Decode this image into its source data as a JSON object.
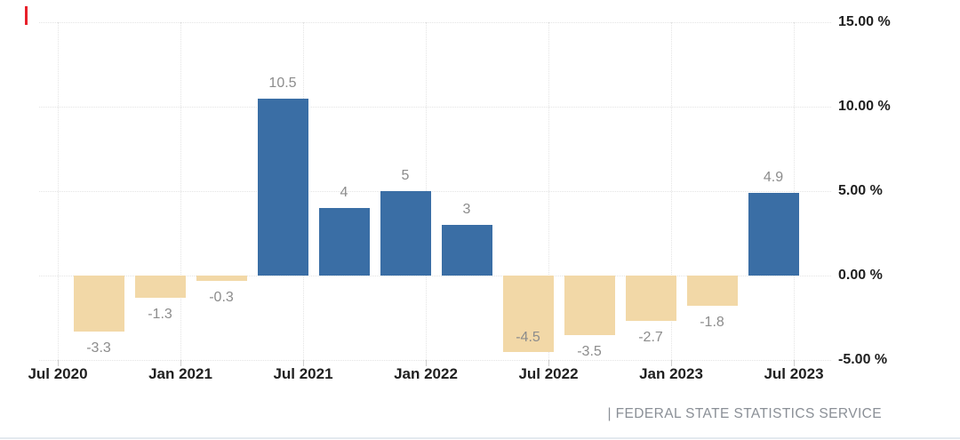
{
  "chart_data": {
    "type": "bar",
    "title": "",
    "xlabel": "",
    "ylabel": "",
    "unit": "%",
    "ylim": [
      -5,
      15
    ],
    "grid": "dotted",
    "legend_position": "none",
    "y_ticks": [
      {
        "value": 15,
        "label": "15.00 %"
      },
      {
        "value": 10,
        "label": "10.00 %"
      },
      {
        "value": 5,
        "label": "5.00 %"
      },
      {
        "value": 0,
        "label": "0.00 %"
      },
      {
        "value": -5,
        "label": "-5.00 %"
      }
    ],
    "x_ticks": [
      "Jul 2020",
      "Jan 2021",
      "Jul 2021",
      "Jan 2022",
      "Jul 2022",
      "Jan 2023",
      "Jul 2023"
    ],
    "bars": [
      {
        "value": -3.3,
        "label": "-3.3"
      },
      {
        "value": -1.3,
        "label": "-1.3"
      },
      {
        "value": -0.3,
        "label": "-0.3"
      },
      {
        "value": 10.5,
        "label": "10.5"
      },
      {
        "value": 4,
        "label": "4"
      },
      {
        "value": 5,
        "label": "5"
      },
      {
        "value": 3,
        "label": "3"
      },
      {
        "value": -4.5,
        "label": "-4.5",
        "label_inside": true
      },
      {
        "value": -3.5,
        "label": "-3.5"
      },
      {
        "value": -2.7,
        "label": "-2.7"
      },
      {
        "value": -1.8,
        "label": "-1.8"
      },
      {
        "value": 4.9,
        "label": "4.9"
      }
    ],
    "colors": {
      "positive_bar": "#3a6ea5",
      "negative_bar": "#f2d8a7",
      "value_label": "#8c8c8c",
      "axis_text": "#1f1f1f",
      "gridline": "#e4e4e4",
      "accent_marker": "#e8202a"
    }
  },
  "footer": {
    "attribution": "| FEDERAL STATE STATISTICS SERVICE"
  }
}
